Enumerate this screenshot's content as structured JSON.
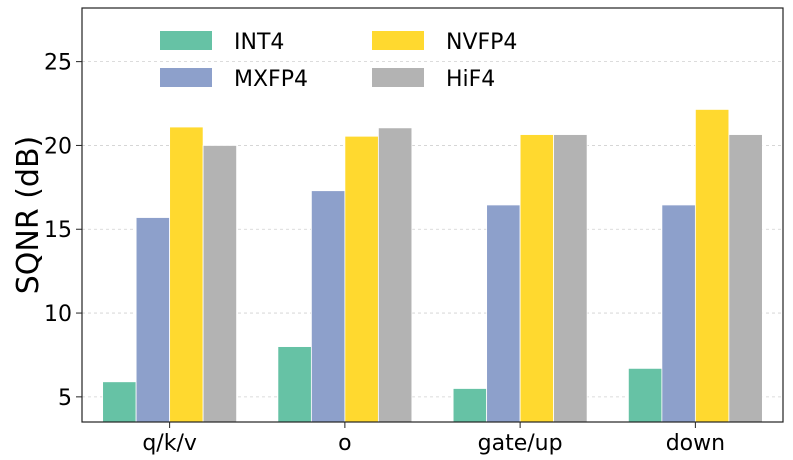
{
  "chart_data": {
    "type": "bar",
    "title": "",
    "xlabel": "",
    "ylabel": "SQNR (dB)",
    "ylim": [
      3.5,
      28.2
    ],
    "yticks": [
      5,
      10,
      15,
      20,
      25
    ],
    "grid": true,
    "legend_position": "top",
    "categories": [
      "q/k/v",
      "o",
      "gate/up",
      "down"
    ],
    "series": [
      {
        "name": "INT4",
        "color": "#66c2a5",
        "values": [
          5.9,
          8.0,
          5.5,
          6.7
        ]
      },
      {
        "name": "MXFP4",
        "color": "#8da0cb",
        "values": [
          15.7,
          17.3,
          16.45,
          16.45
        ]
      },
      {
        "name": "NVFP4",
        "color": "#ffd92f",
        "values": [
          21.1,
          20.55,
          20.65,
          22.15
        ]
      },
      {
        "name": "HiF4",
        "color": "#b3b3b3",
        "values": [
          20.0,
          21.05,
          20.65,
          20.65
        ]
      }
    ]
  }
}
